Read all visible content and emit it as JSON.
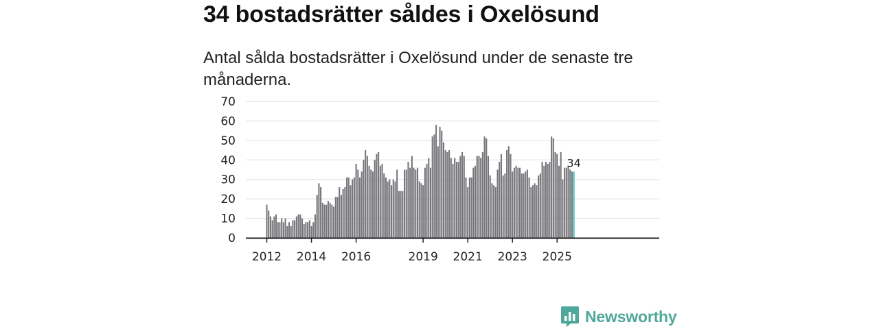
{
  "title": "34 bostadsrätter såldes i Oxelösund",
  "subtitle": "Antal sålda bostadsrätter i Oxelösund under de senaste tre månaderna.",
  "brand": {
    "name": "Newsworthy"
  },
  "colors": {
    "bar": "#77767b",
    "highlight": "#3dbfb3",
    "grid": "#dddddd",
    "axis": "#222222"
  },
  "chart_data": {
    "type": "bar",
    "title": "Antal sålda bostadsrätter i Oxelösund",
    "xlabel": "",
    "ylabel": "",
    "ylim": [
      0,
      70
    ],
    "yticks": [
      0,
      10,
      20,
      30,
      40,
      50,
      60,
      70
    ],
    "xticks": [
      {
        "label": "2012",
        "index": 0
      },
      {
        "label": "2014",
        "index": 24
      },
      {
        "label": "2016",
        "index": 48
      },
      {
        "label": "2019",
        "index": 84
      },
      {
        "label": "2021",
        "index": 108
      },
      {
        "label": "2023",
        "index": 132
      },
      {
        "label": "2025",
        "index": 156
      }
    ],
    "start": "2012-01",
    "frequency": "monthly",
    "highlight_label": "34",
    "values": [
      17,
      14,
      11,
      9,
      11,
      12,
      8,
      8,
      10,
      8,
      10,
      6,
      8,
      6,
      9,
      9,
      11,
      12,
      12,
      10,
      7,
      8,
      8,
      9,
      6,
      8,
      12,
      22,
      28,
      26,
      18,
      17,
      17,
      19,
      18,
      17,
      16,
      21,
      21,
      26,
      22,
      25,
      26,
      31,
      31,
      27,
      30,
      31,
      38,
      35,
      31,
      34,
      40,
      45,
      42,
      37,
      35,
      34,
      40,
      43,
      44,
      37,
      38,
      33,
      31,
      29,
      30,
      27,
      30,
      29,
      35,
      24,
      24,
      24,
      35,
      35,
      39,
      36,
      42,
      36,
      35,
      36,
      29,
      28,
      27,
      36,
      38,
      41,
      36,
      52,
      53,
      58,
      47,
      57,
      55,
      49,
      45,
      44,
      45,
      41,
      38,
      41,
      39,
      39,
      42,
      44,
      42,
      31,
      26,
      31,
      31,
      36,
      37,
      42,
      42,
      41,
      44,
      52,
      51,
      42,
      32,
      28,
      27,
      26,
      35,
      39,
      43,
      32,
      33,
      45,
      47,
      43,
      34,
      36,
      37,
      36,
      36,
      33,
      33,
      34,
      35,
      31,
      26,
      27,
      28,
      27,
      32,
      33,
      39,
      37,
      39,
      38,
      39,
      52,
      51,
      44,
      43,
      37,
      44,
      30,
      36,
      36,
      37,
      35,
      34,
      34
    ]
  }
}
